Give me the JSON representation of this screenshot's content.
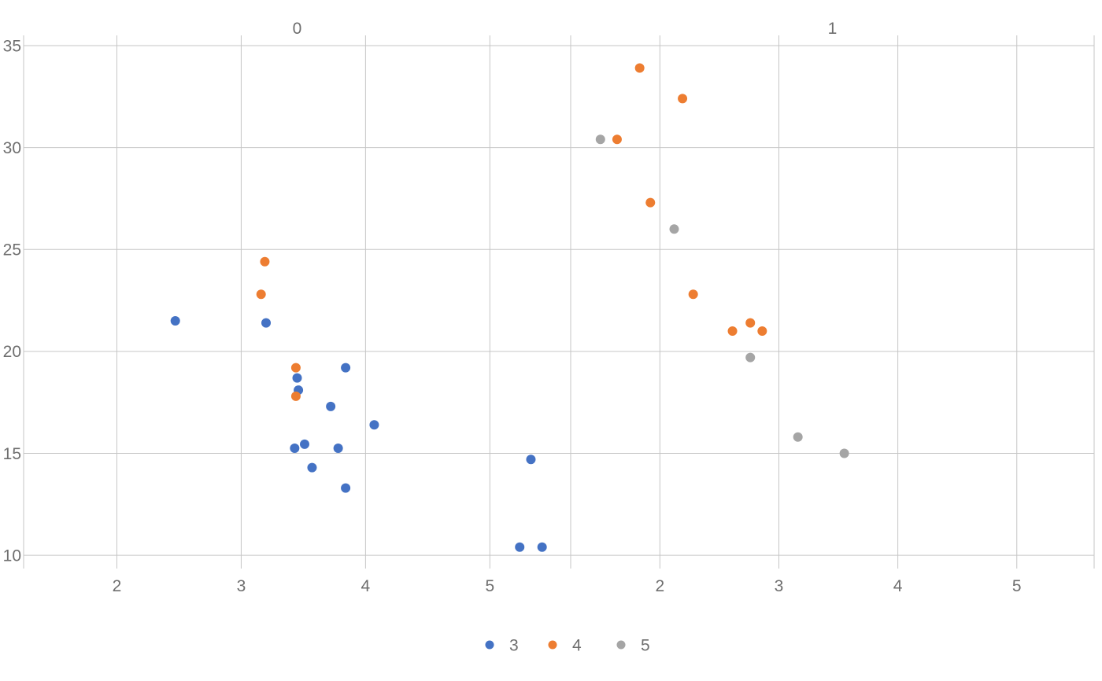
{
  "figure": {
    "background": "#ffffff"
  },
  "chart_data": {
    "type": "scatter",
    "title": "",
    "xlabel": "",
    "ylabel": "",
    "grid": true,
    "grid_color": "#c6c6c6",
    "text_color": "#6e6e6e",
    "x_ticks": [
      2,
      3,
      4,
      5
    ],
    "y_ticks": [
      10,
      15,
      20,
      25,
      30,
      35
    ],
    "xlim": [
      1.25,
      5.65
    ],
    "ylim": [
      9.35,
      35.5
    ],
    "facets": [
      {
        "title": "0",
        "series": [
          {
            "name": "3",
            "color": "#4472c4",
            "points": [
              [
                2.47,
                21.5
              ],
              [
                3.2,
                21.4
              ],
              [
                3.45,
                18.7
              ],
              [
                3.46,
                18.1
              ],
              [
                3.72,
                17.3
              ],
              [
                3.84,
                19.2
              ],
              [
                4.07,
                16.4
              ],
              [
                3.43,
                15.25
              ],
              [
                3.51,
                15.45
              ],
              [
                3.57,
                14.3
              ],
              [
                3.78,
                15.25
              ],
              [
                3.84,
                13.3
              ],
              [
                5.33,
                14.7
              ],
              [
                5.24,
                10.4
              ],
              [
                5.42,
                10.4
              ]
            ]
          },
          {
            "name": "4",
            "color": "#ed7d31",
            "points": [
              [
                3.19,
                24.4
              ],
              [
                3.16,
                22.8
              ],
              [
                3.44,
                19.2
              ],
              [
                3.44,
                17.8
              ]
            ]
          }
        ]
      },
      {
        "title": "1",
        "series": [
          {
            "name": "4",
            "color": "#ed7d31",
            "points": [
              [
                1.83,
                33.9
              ],
              [
                2.19,
                32.4
              ],
              [
                1.64,
                30.4
              ],
              [
                1.92,
                27.3
              ],
              [
                2.28,
                22.8
              ],
              [
                2.61,
                21.0
              ],
              [
                2.76,
                21.4
              ],
              [
                2.86,
                21.0
              ]
            ]
          },
          {
            "name": "5",
            "color": "#a5a5a5",
            "points": [
              [
                1.5,
                30.4
              ],
              [
                2.12,
                26.0
              ],
              [
                2.76,
                19.7
              ],
              [
                3.16,
                15.8
              ],
              [
                3.55,
                15.0
              ]
            ]
          }
        ]
      }
    ],
    "legend": {
      "position": "bottom",
      "items": [
        {
          "label": "3",
          "color": "#4472c4"
        },
        {
          "label": "4",
          "color": "#ed7d31"
        },
        {
          "label": "5",
          "color": "#a5a5a5"
        }
      ]
    }
  }
}
